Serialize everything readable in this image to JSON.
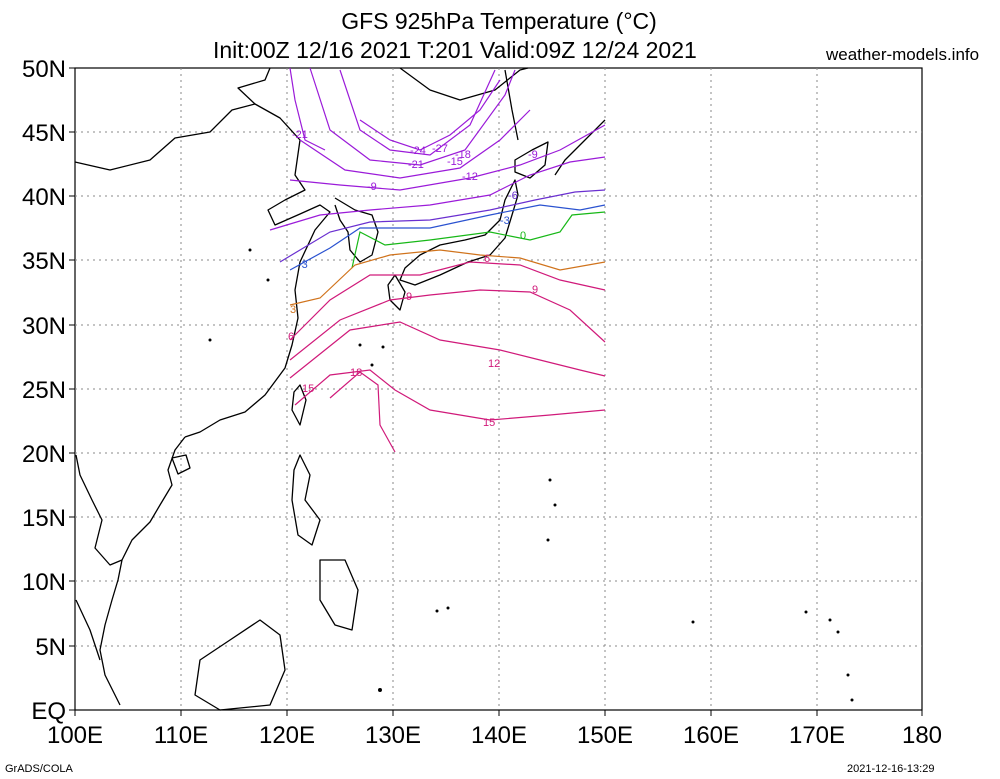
{
  "header": {
    "title": "GFS 925hPa Temperature (°C)",
    "subtitle": "Init:00Z 12/16 2021 T:201 Valid:09Z 12/24 2021",
    "site": "weather-models.info"
  },
  "footer": {
    "left": "GrADS/COLA",
    "right": "2021-12-16-13:29"
  },
  "map": {
    "lon_range": [
      100,
      180
    ],
    "lat_range": [
      0,
      50
    ],
    "lon_labels": [
      "100E",
      "110E",
      "120E",
      "130E",
      "140E",
      "150E",
      "160E",
      "170E",
      "180"
    ],
    "lat_labels": [
      "EQ",
      "5N",
      "10N",
      "15N",
      "20N",
      "25N",
      "30N",
      "35N",
      "40N",
      "45N",
      "50N"
    ],
    "contour_labels": [
      {
        "text": "-21",
        "color": "#9b1bd9"
      },
      {
        "text": "-24",
        "color": "#9b1bd9"
      },
      {
        "text": "-27",
        "color": "#9b1bd9"
      },
      {
        "text": "-18",
        "color": "#9b1bd9"
      },
      {
        "text": "-15",
        "color": "#9b1bd9"
      },
      {
        "text": "-21",
        "color": "#9b1bd9"
      },
      {
        "text": "-12",
        "color": "#9b1bd9"
      },
      {
        "text": "-9",
        "color": "#9b1bd9"
      },
      {
        "text": "-9",
        "color": "#9b1bd9"
      },
      {
        "text": "-6",
        "color": "#6a2fd0"
      },
      {
        "text": "-3",
        "color": "#2a52d0"
      },
      {
        "text": "-3",
        "color": "#2a52d0"
      },
      {
        "text": "0",
        "color": "#17b817"
      },
      {
        "text": "3",
        "color": "#d0731c"
      },
      {
        "text": "6",
        "color": "#d01a7a"
      },
      {
        "text": "6",
        "color": "#d01a7a"
      },
      {
        "text": "9",
        "color": "#d01a7a"
      },
      {
        "text": "9",
        "color": "#d01a7a"
      },
      {
        "text": "12",
        "color": "#d01a7a"
      },
      {
        "text": "15",
        "color": "#d01a7a"
      },
      {
        "text": "15",
        "color": "#d01a7a"
      },
      {
        "text": "18",
        "color": "#d01a7a"
      }
    ]
  }
}
